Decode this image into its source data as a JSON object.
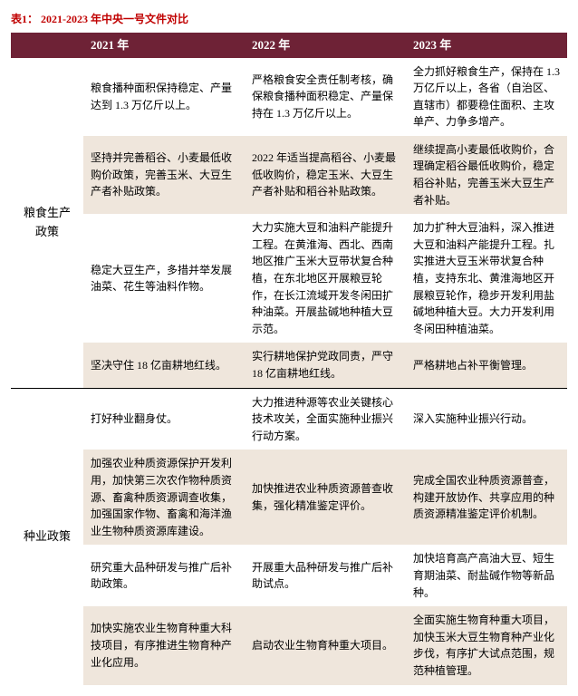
{
  "title_color": "#c00000",
  "header_bg": "#6e2236",
  "header_text_color": "#ffffff",
  "alt_row_bg": "#efe6dc",
  "row_bg": "#ffffff",
  "title": "表1：  2021-2023 年中央一号文件对比",
  "headers": [
    "",
    "2021 年",
    "2022 年",
    "2023 年"
  ],
  "data": [
    {
      "category": "粮食生产政策",
      "rows": [
        {
          "y21": "粮食播种面积保持稳定、产量达到 1.3 万亿斤以上。",
          "y22": "严格粮食安全责任制考核，确保粮食播种面积稳定、产量保持在 1.3 万亿斤以上。",
          "y23": "全力抓好粮食生产，保持在 1.3 万亿斤以上，各省（自治区、直辖市）都要稳住面积、主攻单产、力争多增产。"
        },
        {
          "y21": "坚持并完善稻谷、小麦最低收购价政策，完善玉米、大豆生产者补贴政策。",
          "y22": "2022 年适当提高稻谷、小麦最低收购价，稳定玉米、大豆生产者补贴和稻谷补贴政策。",
          "y23": "继续提高小麦最低收购价，合理确定稻谷最低收购价，稳定稻谷补贴，完善玉米大豆生产者补贴。"
        },
        {
          "y21": "稳定大豆生产，多措并举发展油菜、花生等油料作物。",
          "y22": "大力实施大豆和油料产能提升工程。在黄淮海、西北、西南地区推广玉米大豆带状复合种植，在东北地区开展粮豆轮作，在长江流域开发冬闲田扩种油菜。开展盐碱地种植大豆示范。",
          "y23": "加力扩种大豆油料，深入推进大豆和油料产能提升工程。扎实推进大豆玉米带状复合种植，支持东北、黄淮海地区开展粮豆轮作，稳步开发利用盐碱地种植大豆。大力开发利用冬闲田种植油菜。"
        },
        {
          "y21": "坚决守住 18 亿亩耕地红线。",
          "y22": "实行耕地保护党政同责，严守 18 亿亩耕地红线。",
          "y23": "严格耕地占补平衡管理。"
        }
      ]
    },
    {
      "category": "种业政策",
      "rows": [
        {
          "y21": "打好种业翻身仗。",
          "y22": "大力推进种源等农业关键核心技术攻关，全面实施种业振兴行动方案。",
          "y23": "深入实施种业振兴行动。"
        },
        {
          "y21": "加强农业种质资源保护开发利用，加快第三次农作物种质资源、畜禽种质资源调查收集，加强国家作物、畜禽和海洋渔业生物种质资源库建设。",
          "y22": "加快推进农业种质资源普查收集，强化精准鉴定评价。",
          "y23": "完成全国农业种质资源普查，构建开放协作、共享应用的种质资源精准鉴定评价机制。"
        },
        {
          "y21": "研究重大品种研发与推广后补助政策。",
          "y22": "开展重大品种研发与推广后补助试点。",
          "y23": "加快培育高产高油大豆、短生育期油菜、耐盐碱作物等新品种。"
        },
        {
          "y21": "加快实施农业生物育种重大科技项目，有序推进生物育种产业化应用。",
          "y22": "启动农业生物育种重大项目。",
          "y23": "全面实施生物育种重大项目，加快玉米大豆生物育种产业化步伐，有序扩大试点范围，规范种植管理。"
        }
      ]
    }
  ]
}
